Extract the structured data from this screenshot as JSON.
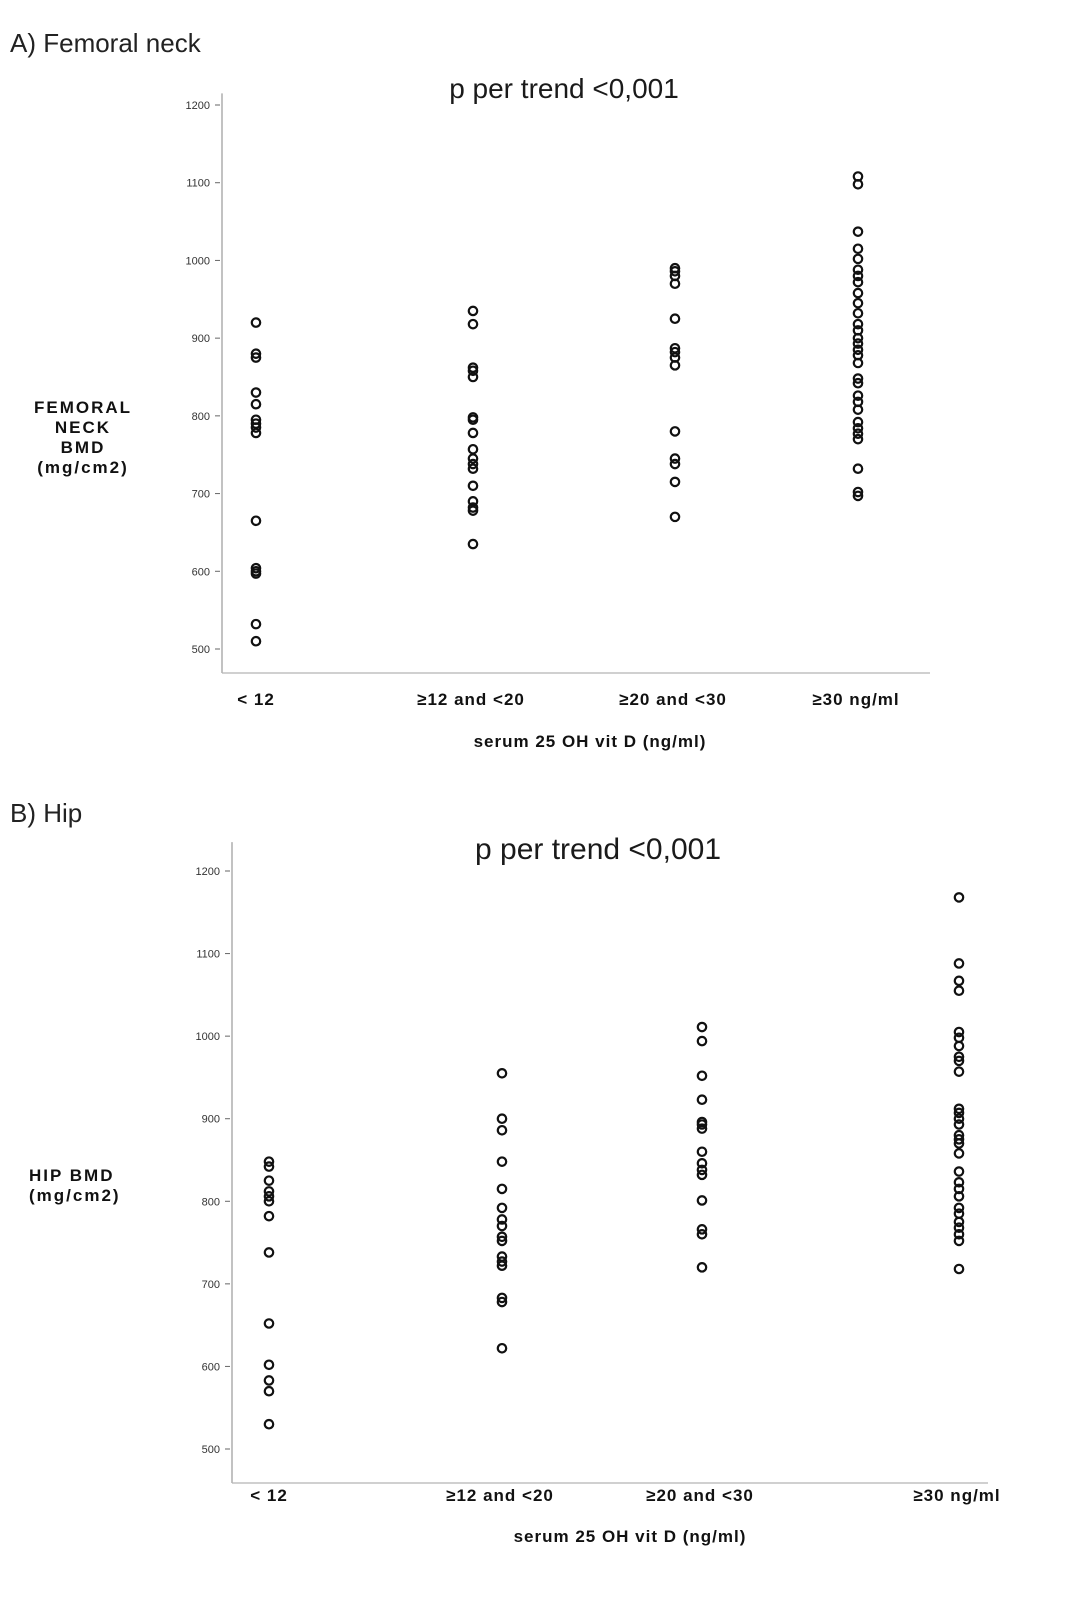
{
  "chart_data": [
    {
      "panel_label": "A) Femoral neck",
      "type": "scatter",
      "annotation": "p per trend <0,001",
      "xlabel": "serum 25 OH vit D (ng/ml)",
      "ylabel": "FEMORAL\nNECK\nBMD\n(mg/cm2)",
      "categories": [
        "< 12",
        "≥12 and <20",
        "≥20 and <30",
        "≥30 ng/ml"
      ],
      "yticks": [
        500,
        600,
        700,
        800,
        900,
        1000,
        1100,
        1200
      ],
      "ylim": [
        485,
        1215
      ],
      "grid": false,
      "legend": "none",
      "series": [
        {
          "category": "< 12",
          "values": [
            920,
            880,
            875,
            830,
            815,
            795,
            790,
            785,
            778,
            665,
            604,
            600,
            597,
            532,
            510
          ]
        },
        {
          "category": "≥12 and <20",
          "values": [
            935,
            918,
            862,
            858,
            850,
            798,
            795,
            778,
            757,
            745,
            738,
            732,
            710,
            690,
            682,
            678,
            635
          ]
        },
        {
          "category": "≥20 and <30",
          "values": [
            990,
            986,
            980,
            970,
            925,
            887,
            882,
            875,
            865,
            780,
            745,
            738,
            715,
            670
          ]
        },
        {
          "category": "≥30 ng/ml",
          "values": [
            1108,
            1098,
            1037,
            1015,
            1002,
            988,
            980,
            972,
            958,
            945,
            932,
            918,
            910,
            900,
            893,
            885,
            878,
            868,
            848,
            842,
            826,
            818,
            808,
            792,
            784,
            777,
            770,
            732,
            702,
            697
          ]
        }
      ]
    },
    {
      "panel_label": "B) Hip",
      "type": "scatter",
      "annotation": "p per trend <0,001",
      "xlabel": "serum 25 OH vit D (ng/ml)",
      "ylabel": "HIP BMD\n(mg/cm2)",
      "categories": [
        "< 12",
        "≥12 and <20",
        "≥20 and <30",
        "≥30 ng/ml"
      ],
      "yticks": [
        500,
        600,
        700,
        800,
        900,
        1000,
        1100,
        1200
      ],
      "ylim": [
        485,
        1235
      ],
      "grid": false,
      "legend": "none",
      "series": [
        {
          "category": "< 12",
          "values": [
            848,
            842,
            825,
            812,
            806,
            800,
            782,
            738,
            652,
            602,
            583,
            570,
            530
          ]
        },
        {
          "category": "≥12 and <20",
          "values": [
            955,
            900,
            886,
            848,
            815,
            792,
            778,
            770,
            757,
            752,
            733,
            727,
            722,
            683,
            678,
            622
          ]
        },
        {
          "category": "≥20 and <30",
          "values": [
            1011,
            994,
            952,
            923,
            896,
            893,
            888,
            860,
            846,
            838,
            832,
            801,
            766,
            760,
            720
          ]
        },
        {
          "category": "≥30 ng/ml",
          "values": [
            1168,
            1088,
            1067,
            1055,
            1005,
            998,
            988,
            975,
            970,
            957,
            912,
            907,
            900,
            893,
            880,
            875,
            870,
            858,
            836,
            823,
            815,
            806,
            792,
            785,
            775,
            768,
            760,
            752,
            718
          ]
        }
      ]
    }
  ]
}
